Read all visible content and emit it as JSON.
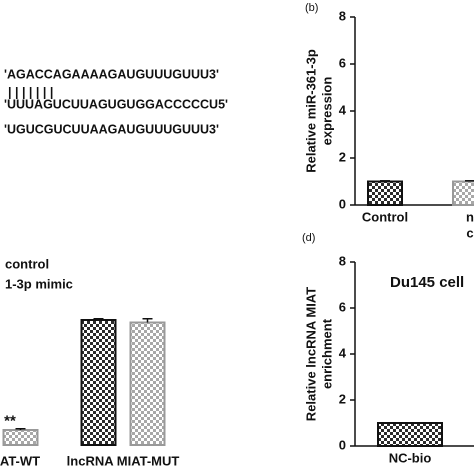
{
  "sequences": {
    "lines": [
      "'AGACCAGAAAAGAUGUUUGUUU3'",
      "|   |       |   |   |   |   |",
      "'UUUAGUCUUAGUGUGGACCCCCU5'",
      "'UGUCGUCUUAAGAUGUUUGUUU3'"
    ]
  },
  "chart_data": [
    {
      "type": "bar",
      "panel": "(b)",
      "ylabel": [
        "Relative miR-361-3p",
        "expression"
      ],
      "categories": [
        [
          "Control"
        ],
        [
          "n",
          "c"
        ]
      ],
      "values": [
        1.0,
        1.0
      ],
      "errors": [
        0.03,
        0.03
      ],
      "colors": [
        "#2b2b2b",
        "#a8a8a8"
      ],
      "ylim": [
        0,
        8
      ],
      "yticks": [
        0,
        2,
        4,
        6,
        8
      ]
    },
    {
      "type": "grouped-bar",
      "categories": [
        "AT-WT",
        "lncRNA MIAT-MUT"
      ],
      "series": [
        {
          "name": "control",
          "color": "#2b2b2b",
          "values": [
            null,
            1.0
          ],
          "errors": [
            null,
            0.01
          ]
        },
        {
          "name": "1-3p mimic",
          "color": "#a8a8a8",
          "values": [
            0.12,
            0.98
          ],
          "errors": [
            0.01,
            0.03
          ]
        }
      ],
      "annotations": [
        "**"
      ],
      "ylim": [
        0,
        1.6
      ]
    },
    {
      "type": "bar",
      "panel": "(d)",
      "title": "Du145 cell",
      "ylabel": [
        "Relative lncRNA MIAT",
        "enrichment"
      ],
      "categories": [
        [
          "NC-bio"
        ]
      ],
      "values": [
        1.0
      ],
      "errors": [
        0.0
      ],
      "colors": [
        "#2b2b2b"
      ],
      "ylim": [
        0,
        8
      ],
      "yticks": [
        0,
        2,
        4,
        6,
        8
      ]
    }
  ]
}
